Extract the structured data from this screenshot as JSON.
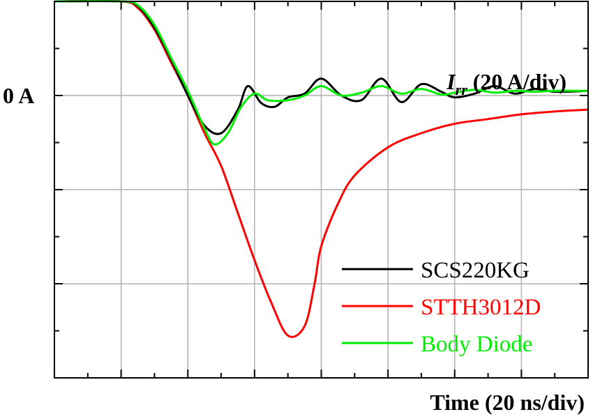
{
  "chart_data": {
    "type": "line",
    "title": "",
    "xlabel": "Time (20 ns/div)",
    "ylabel_symbol": "I",
    "ylabel_subscript": "rr",
    "ylabel_suffix": " (20 A/div)",
    "y_tick_labels": [
      {
        "value": 0,
        "label": "0 A"
      }
    ],
    "xlim": [
      0,
      8
    ],
    "ylim": [
      -3.0,
      1.0
    ],
    "x_divisions": 8,
    "y_divisions": 4,
    "grid": true,
    "legend_position": "bottom-right",
    "series": [
      {
        "name": "SCS220KG",
        "color": "#000000",
        "x": [
          0,
          1.0,
          1.25,
          1.5,
          1.75,
          2.0,
          2.25,
          2.5,
          2.75,
          2.9,
          3.1,
          3.3,
          3.5,
          3.75,
          4.0,
          4.3,
          4.6,
          4.9,
          5.2,
          5.5,
          5.8,
          6.0,
          6.3,
          6.6,
          6.9,
          7.2,
          7.5,
          8.0
        ],
        "y": [
          1.0,
          1.0,
          0.95,
          0.72,
          0.38,
          0.0,
          -0.32,
          -0.4,
          -0.15,
          0.1,
          -0.08,
          -0.12,
          -0.02,
          0.02,
          0.18,
          0.0,
          -0.05,
          0.18,
          -0.07,
          0.12,
          0.04,
          -0.02,
          0.02,
          0.1,
          0.02,
          0.07,
          0.04,
          0.05
        ]
      },
      {
        "name": "STTH3012D",
        "color": "#ff0000",
        "x": [
          0,
          1.0,
          1.25,
          1.5,
          1.75,
          2.0,
          2.25,
          2.5,
          2.75,
          3.0,
          3.25,
          3.5,
          3.75,
          3.9,
          4.0,
          4.25,
          4.5,
          5.0,
          5.5,
          6.0,
          6.5,
          7.0,
          7.5,
          8.0
        ],
        "y": [
          1.0,
          1.0,
          0.93,
          0.7,
          0.35,
          0.0,
          -0.4,
          -0.75,
          -1.25,
          -1.75,
          -2.2,
          -2.55,
          -2.45,
          -2.0,
          -1.6,
          -1.15,
          -0.85,
          -0.55,
          -0.4,
          -0.3,
          -0.25,
          -0.2,
          -0.17,
          -0.15
        ]
      },
      {
        "name": "Body Diode",
        "color": "#00ee00",
        "x": [
          0,
          1.0,
          1.25,
          1.5,
          1.75,
          2.0,
          2.25,
          2.4,
          2.6,
          2.8,
          3.0,
          3.2,
          3.5,
          3.75,
          4.0,
          4.3,
          4.6,
          4.9,
          5.2,
          5.5,
          5.8,
          6.0,
          6.3,
          6.6,
          6.9,
          7.2,
          7.5,
          8.0
        ],
        "y": [
          1.0,
          1.0,
          0.96,
          0.75,
          0.4,
          0.05,
          -0.35,
          -0.52,
          -0.4,
          -0.12,
          0.02,
          -0.05,
          -0.05,
          0.0,
          0.1,
          0.0,
          0.03,
          0.1,
          0.02,
          0.07,
          0.01,
          0.03,
          0.06,
          0.03,
          0.05,
          0.04,
          0.05,
          0.05
        ]
      }
    ]
  }
}
